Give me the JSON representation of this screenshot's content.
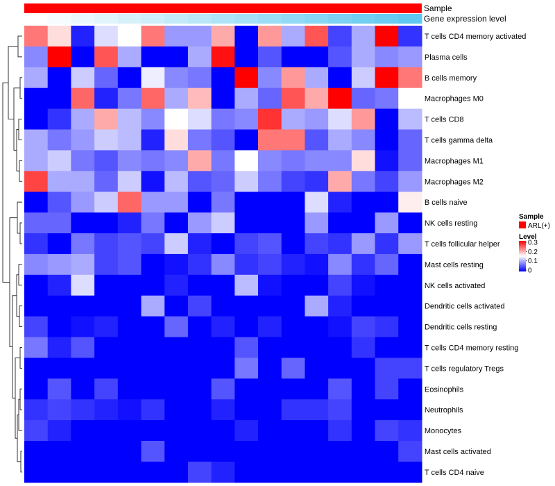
{
  "chart_data": {
    "type": "heatmap",
    "title": "",
    "annotations": {
      "sample_label": "Sample",
      "sample_color": "#ff0000",
      "gene_label": "Gene expression level",
      "gene_colors": [
        "#ffffff",
        "#5fc8f0"
      ]
    },
    "rows": [
      "T cells CD4 memory activated",
      "Plasma cells",
      "B cells memory",
      "Macrophages M0",
      "T cells CD8",
      "T cells gamma delta",
      "Macrophages M1",
      "Macrophages M2",
      "B cells naive",
      "NK cells resting",
      "T cells follicular helper",
      "Mast cells resting",
      "NK cells activated",
      "Dendritic cells activated",
      "Dendritic cells resting",
      "T cells CD4 memory resting",
      "T cells regulatory  Tregs",
      "Eosinophils",
      "Neutrophils",
      "Monocytes",
      "Mast cells activated",
      "T cells CD4 naive"
    ],
    "n_columns": 17,
    "values": [
      [
        0.23,
        0.17,
        0.02,
        0.13,
        0.15,
        0.23,
        0.09,
        0.09,
        0.2,
        0.0,
        0.21,
        0.1,
        0.25,
        0.04,
        0.1,
        0.3,
        0.03
      ],
      [
        0.08,
        0.3,
        0.0,
        0.25,
        0.1,
        0.0,
        0.0,
        0.1,
        0.29,
        0.0,
        0.05,
        0.0,
        0.0,
        0.05,
        0.1,
        0.08,
        0.09
      ],
      [
        0.1,
        0.0,
        0.12,
        0.06,
        0.0,
        0.14,
        0.08,
        0.07,
        0.0,
        0.3,
        0.08,
        0.21,
        0.1,
        0.0,
        0.12,
        0.3,
        0.23
      ],
      [
        0.0,
        0.0,
        0.24,
        0.02,
        0.07,
        0.24,
        0.1,
        0.19,
        0.0,
        0.1,
        0.06,
        0.25,
        0.2,
        0.3,
        0.06,
        0.07,
        0.15
      ],
      [
        0.0,
        0.03,
        0.1,
        0.2,
        0.11,
        0.08,
        0.15,
        0.13,
        0.07,
        0.08,
        0.27,
        0.1,
        0.09,
        0.13,
        0.21,
        0.0,
        0.11
      ],
      [
        0.1,
        0.07,
        0.09,
        0.12,
        0.11,
        0.02,
        0.17,
        0.07,
        0.05,
        0.0,
        0.23,
        0.23,
        0.05,
        0.1,
        0.08,
        0.0,
        0.06
      ],
      [
        0.1,
        0.12,
        0.07,
        0.05,
        0.08,
        0.07,
        0.08,
        0.2,
        0.07,
        0.15,
        0.08,
        0.07,
        0.08,
        0.08,
        0.17,
        0.01,
        0.06
      ],
      [
        0.26,
        0.1,
        0.1,
        0.06,
        0.12,
        0.01,
        0.11,
        0.05,
        0.06,
        0.12,
        0.07,
        0.04,
        0.03,
        0.2,
        0.07,
        0.04,
        0.09
      ],
      [
        0.0,
        0.05,
        0.09,
        0.12,
        0.24,
        0.09,
        0.09,
        0.0,
        0.07,
        0.0,
        0.0,
        0.0,
        0.13,
        0.02,
        0.0,
        0.0,
        0.16
      ],
      [
        0.06,
        0.06,
        0.0,
        0.0,
        0.02,
        0.07,
        0.0,
        0.09,
        0.12,
        0.0,
        0.0,
        0.0,
        0.09,
        0.0,
        0.0,
        0.09,
        0.0
      ],
      [
        0.03,
        0.0,
        0.07,
        0.04,
        0.05,
        0.04,
        0.12,
        0.02,
        0.0,
        0.04,
        0.05,
        0.0,
        0.04,
        0.03,
        0.09,
        0.03,
        0.09
      ],
      [
        0.08,
        0.09,
        0.1,
        0.04,
        0.05,
        0.0,
        0.01,
        0.03,
        0.08,
        0.03,
        0.04,
        0.02,
        0.01,
        0.08,
        0.03,
        0.06,
        0.0
      ],
      [
        0.0,
        0.02,
        0.13,
        0.0,
        0.0,
        0.0,
        0.02,
        0.0,
        0.0,
        0.11,
        0.01,
        0.0,
        0.0,
        0.04,
        0.01,
        0.0,
        0.0
      ],
      [
        0.0,
        0.0,
        0.0,
        0.0,
        0.0,
        0.1,
        0.0,
        0.04,
        0.0,
        0.0,
        0.0,
        0.0,
        0.1,
        0.02,
        0.0,
        0.0,
        0.0
      ],
      [
        0.04,
        0.0,
        0.01,
        0.02,
        0.0,
        0.0,
        0.06,
        0.0,
        0.02,
        0.0,
        0.02,
        0.0,
        0.0,
        0.01,
        0.04,
        0.03,
        0.0
      ],
      [
        0.07,
        0.02,
        0.05,
        0.0,
        0.0,
        0.0,
        0.0,
        0.0,
        0.0,
        0.05,
        0.0,
        0.0,
        0.0,
        0.0,
        0.03,
        0.0,
        0.0
      ],
      [
        0.0,
        0.0,
        0.0,
        0.0,
        0.0,
        0.0,
        0.0,
        0.0,
        0.0,
        0.07,
        0.0,
        0.06,
        0.0,
        0.0,
        0.0,
        0.04,
        0.04
      ],
      [
        0.0,
        0.05,
        0.0,
        0.04,
        0.0,
        0.0,
        0.0,
        0.0,
        0.05,
        0.0,
        0.0,
        0.0,
        0.0,
        0.05,
        0.0,
        0.04,
        0.0
      ],
      [
        0.03,
        0.04,
        0.03,
        0.02,
        0.01,
        0.03,
        0.0,
        0.0,
        0.02,
        0.0,
        0.0,
        0.03,
        0.03,
        0.04,
        0.0,
        0.0,
        0.0
      ],
      [
        0.04,
        0.02,
        0.0,
        0.0,
        0.0,
        0.0,
        0.0,
        0.0,
        0.0,
        0.02,
        0.0,
        0.0,
        0.0,
        0.03,
        0.0,
        0.04,
        0.03
      ],
      [
        0.0,
        0.0,
        0.0,
        0.0,
        0.0,
        0.05,
        0.0,
        0.0,
        0.0,
        0.0,
        0.0,
        0.0,
        0.0,
        0.0,
        0.0,
        0.0,
        0.04
      ],
      [
        0.0,
        0.0,
        0.0,
        0.0,
        0.0,
        0.0,
        0.0,
        0.04,
        0.02,
        0.0,
        0.0,
        0.0,
        0.0,
        0.0,
        0.0,
        0.0,
        0.0
      ]
    ],
    "color_scale": {
      "min": 0,
      "mid": 0.15,
      "max": 0.3,
      "low": "#0000ff",
      "midcolor": "#ffffff",
      "high": "#ff0000"
    },
    "legend": {
      "sample_title": "Sample",
      "sample_item": "ARL(+)",
      "level_title": "Level",
      "ticks": [
        0.3,
        0.2,
        0.1,
        0
      ],
      "tick_labels": [
        "0.3",
        "0.2",
        "0.1",
        "0"
      ]
    },
    "row_dendrogram": true
  }
}
